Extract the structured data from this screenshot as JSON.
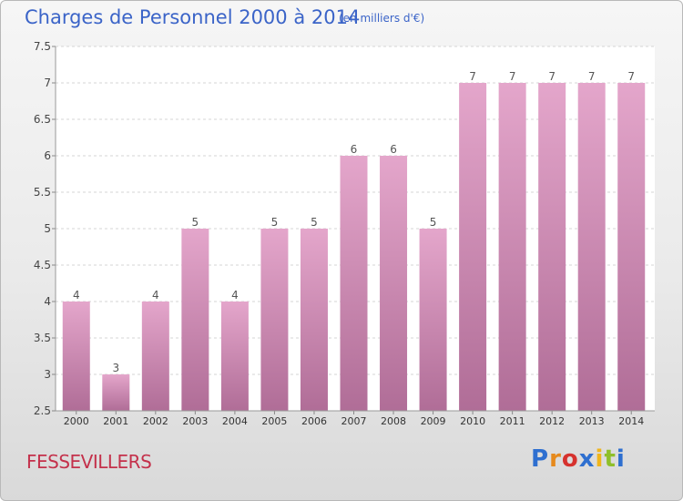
{
  "header": {
    "title": "Charges de Personnel 2000 à 2014",
    "subtitle": "(en milliers d'€)"
  },
  "footer": {
    "commune": "FESSEVILLERS",
    "logo_letters": [
      "P",
      "r",
      "o",
      "x",
      "i",
      "t",
      "i"
    ],
    "logo_colors": [
      "#2e6fd0",
      "#e68a1d",
      "#d6322e",
      "#2e6fd0",
      "#f0b51c",
      "#8fbf2a",
      "#2e6fd0"
    ]
  },
  "chart_data": {
    "type": "bar",
    "categories": [
      "2000",
      "2001",
      "2002",
      "2003",
      "2004",
      "2005",
      "2006",
      "2007",
      "2008",
      "2009",
      "2010",
      "2011",
      "2012",
      "2013",
      "2014"
    ],
    "values": [
      4,
      3,
      4,
      5,
      4,
      5,
      5,
      6,
      6,
      5,
      7,
      7,
      7,
      7,
      7
    ],
    "data_labels": [
      "4",
      "3",
      "4",
      "5",
      "4",
      "5",
      "5",
      "6",
      "6",
      "5",
      "7",
      "7",
      "7",
      "7",
      "7"
    ],
    "yticks": [
      "2.5",
      "3",
      "3.5",
      "4",
      "4.5",
      "5",
      "5.5",
      "6",
      "6.5",
      "7",
      "7.5"
    ],
    "ylim": [
      2.5,
      7.5
    ],
    "grid": true,
    "xlabel": "",
    "ylabel": "",
    "bar_color_top": "#e4a6cb",
    "bar_color_bottom": "#b06d97",
    "plot_bg": "#ffffff",
    "grid_color": "#d4d4d4"
  }
}
